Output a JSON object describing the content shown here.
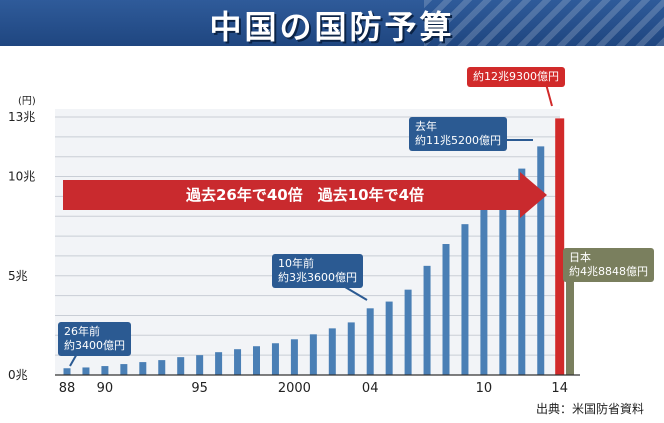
{
  "title": "中国の国防予算",
  "source": "出典：米国防省資料",
  "banner": "過去26年で40倍　過去10年で4倍",
  "colors": {
    "china": "#4a7fb5",
    "latest": "#d12a2a",
    "japan": "#7a7f5e",
    "arrow": "#c92a2e"
  },
  "callouts": {
    "c1988": "26年前\n約3400億円",
    "c2004": "10年前\n約3兆3600億円",
    "c2013": "去年\n約11兆5200億円",
    "c2014": "約12兆9300億円",
    "japan": "日本\n約4兆8848億円"
  },
  "chart_data": {
    "type": "bar",
    "yunit": "(円)",
    "ylim": [
      0,
      13
    ],
    "yticks": [
      {
        "v": 0,
        "label": "0兆"
      },
      {
        "v": 5,
        "label": "5兆"
      },
      {
        "v": 10,
        "label": "10兆"
      },
      {
        "v": 13,
        "label": "13兆"
      }
    ],
    "xtick_labels": [
      {
        "year": 1988,
        "label": "88"
      },
      {
        "year": 1990,
        "label": "90"
      },
      {
        "year": 1995,
        "label": "95"
      },
      {
        "year": 2000,
        "label": "2000"
      },
      {
        "year": 2004,
        "label": "04"
      },
      {
        "year": 2010,
        "label": "10"
      },
      {
        "year": 2014,
        "label": "14"
      }
    ],
    "years": [
      1988,
      1989,
      1990,
      1991,
      1992,
      1993,
      1994,
      1995,
      1996,
      1997,
      1998,
      1999,
      2000,
      2001,
      2002,
      2003,
      2004,
      2005,
      2006,
      2007,
      2008,
      2009,
      2010,
      2011,
      2012,
      2013,
      2014
    ],
    "values": [
      0.34,
      0.38,
      0.45,
      0.55,
      0.65,
      0.75,
      0.9,
      1.0,
      1.15,
      1.3,
      1.45,
      1.6,
      1.8,
      2.05,
      2.35,
      2.65,
      3.36,
      3.7,
      4.3,
      5.5,
      6.6,
      7.6,
      8.5,
      9.0,
      10.4,
      11.52,
      12.93
    ],
    "japan": {
      "value": 4.8848
    }
  }
}
